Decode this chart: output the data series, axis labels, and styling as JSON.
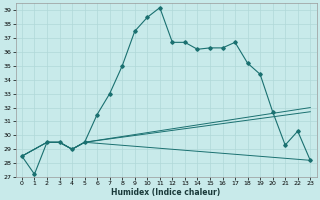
{
  "xlabel": "Humidex (Indice chaleur)",
  "background_color": "#c8eaea",
  "grid_color": "#b0d8d8",
  "line_color": "#1a7070",
  "xlim": [
    -0.5,
    23.5
  ],
  "ylim": [
    27,
    39.5
  ],
  "yticks": [
    27,
    28,
    29,
    30,
    31,
    32,
    33,
    34,
    35,
    36,
    37,
    38,
    39
  ],
  "xticks": [
    0,
    1,
    2,
    3,
    4,
    5,
    6,
    7,
    8,
    9,
    10,
    11,
    12,
    13,
    14,
    15,
    16,
    17,
    18,
    19,
    20,
    21,
    22,
    23
  ],
  "lines": [
    {
      "x": [
        0,
        1,
        2,
        3,
        4,
        5,
        6,
        7,
        8,
        9,
        10,
        11,
        12,
        13,
        14,
        15,
        16,
        17,
        18,
        19,
        20,
        21,
        22,
        23
      ],
      "y": [
        28.5,
        27.2,
        29.5,
        29.5,
        29.0,
        29.5,
        31.5,
        33.0,
        35.0,
        37.5,
        38.5,
        39.2,
        36.7,
        36.7,
        36.2,
        36.3,
        36.3,
        36.7,
        35.2,
        34.4,
        31.7,
        29.3,
        30.3,
        28.2
      ],
      "marker": true
    },
    {
      "x": [
        0,
        2,
        3,
        4,
        5,
        23
      ],
      "y": [
        28.5,
        29.5,
        29.5,
        29.0,
        29.5,
        28.2
      ],
      "marker": false
    },
    {
      "x": [
        0,
        2,
        3,
        4,
        5,
        23
      ],
      "y": [
        28.5,
        29.5,
        29.5,
        29.0,
        29.5,
        31.7
      ],
      "marker": false
    },
    {
      "x": [
        0,
        2,
        3,
        4,
        5,
        23
      ],
      "y": [
        28.5,
        29.5,
        29.5,
        29.0,
        29.5,
        32.0
      ],
      "marker": false
    }
  ]
}
